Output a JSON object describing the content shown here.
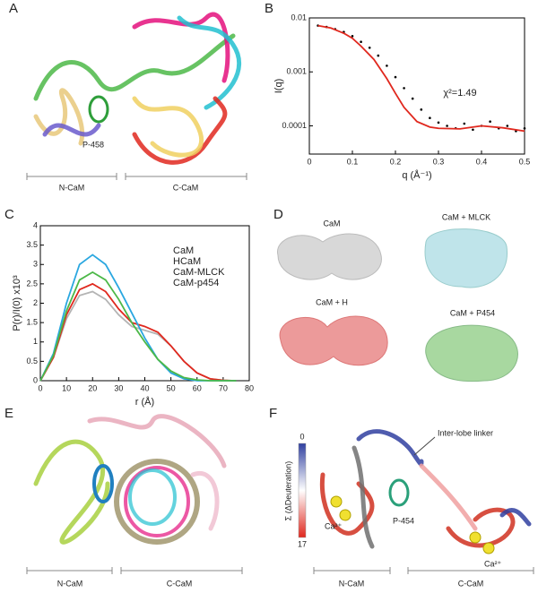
{
  "panels": {
    "A": {
      "label": "A",
      "peptide": "P-458",
      "n_lobe": "N-CaM",
      "c_lobe": "C-CaM"
    },
    "B": {
      "label": "B"
    },
    "C": {
      "label": "C"
    },
    "D": {
      "label": "D",
      "models": [
        "CaM",
        "CaM + MLCK",
        "CaM + H",
        "CaM + P454"
      ]
    },
    "E": {
      "label": "E",
      "n_lobe": "N-CaM",
      "c_lobe": "C-CaM"
    },
    "F": {
      "label": "F",
      "linker": "Inter-lobe linker",
      "scale_title": "Σ (ΔDeuteration)",
      "scale_min": "0",
      "scale_max": "17",
      "calcium": [
        "Ca²⁺",
        "Ca²⁺"
      ],
      "peptide": "P-454",
      "n_lobe": "N-CaM",
      "c_lobe": "C-CaM"
    }
  },
  "chart_data": [
    {
      "type": "scatter",
      "x_label": "q (Å⁻¹)",
      "y_label": "I(q)",
      "annotation": "χ²=1.49",
      "xlim": [
        0,
        0.5
      ],
      "xticks": [
        0,
        0.1,
        0.2,
        0.3,
        0.4,
        0.5
      ],
      "ylim": [
        3e-05,
        0.01
      ],
      "yticks": [
        0.0001,
        0.001,
        0.01
      ],
      "log_y": true,
      "series": [
        {
          "style": "points",
          "color": "#000000",
          "x": [
            0.02,
            0.04,
            0.06,
            0.08,
            0.1,
            0.12,
            0.14,
            0.16,
            0.18,
            0.2,
            0.22,
            0.24,
            0.26,
            0.28,
            0.3,
            0.32,
            0.34,
            0.36,
            0.38,
            0.4,
            0.42,
            0.44,
            0.46,
            0.48,
            0.5
          ],
          "values": [
            0.0072,
            0.0068,
            0.0062,
            0.0055,
            0.0046,
            0.0036,
            0.0028,
            0.002,
            0.0013,
            0.0008,
            0.0005,
            0.00032,
            0.0002,
            0.00014,
            0.000115,
            0.0001,
            9e-05,
            0.00011,
            8.5e-05,
            0.0001,
            0.00012,
            9e-05,
            0.0001,
            8e-05,
            9e-05
          ]
        },
        {
          "style": "line",
          "color": "#e0281e",
          "x": [
            0.02,
            0.05,
            0.08,
            0.1,
            0.12,
            0.15,
            0.18,
            0.2,
            0.22,
            0.25,
            0.28,
            0.3,
            0.35,
            0.4,
            0.45,
            0.5
          ],
          "values": [
            0.0072,
            0.0065,
            0.0052,
            0.0042,
            0.003,
            0.0017,
            0.00075,
            0.0004,
            0.00022,
            0.00012,
            9.5e-05,
            9e-05,
            8.8e-05,
            0.0001,
            9.2e-05,
            8e-05
          ]
        }
      ]
    },
    {
      "type": "line",
      "x_label": "r (Å)",
      "y_label": "P(r)/I(0)  x10³",
      "xlim": [
        0,
        80
      ],
      "xticks": [
        0,
        10,
        20,
        30,
        40,
        50,
        60,
        70,
        80
      ],
      "ylim": [
        0,
        4
      ],
      "yticks": [
        0,
        0.5,
        1,
        1.5,
        2,
        2.5,
        3,
        3.5,
        4
      ],
      "x": [
        0,
        5,
        10,
        15,
        20,
        25,
        30,
        35,
        40,
        45,
        50,
        55,
        60,
        65,
        70,
        75
      ],
      "series": [
        {
          "name": "CaM",
          "color": "#b4b4b4",
          "style": "line",
          "values": [
            0,
            0.6,
            1.6,
            2.2,
            2.3,
            2.1,
            1.7,
            1.4,
            1.3,
            1.2,
            0.9,
            0.5,
            0.2,
            0.05,
            0.01,
            0
          ]
        },
        {
          "name": "HCaM",
          "color": "#e0281e",
          "style": "line",
          "values": [
            0,
            0.6,
            1.7,
            2.35,
            2.5,
            2.3,
            1.85,
            1.5,
            1.4,
            1.25,
            0.9,
            0.5,
            0.2,
            0.05,
            0.01,
            0
          ]
        },
        {
          "name": "CaM-MLCK",
          "color": "#2aa7e0",
          "style": "line",
          "values": [
            0,
            0.7,
            2.0,
            3.0,
            3.25,
            3.0,
            2.4,
            1.75,
            1.1,
            0.55,
            0.2,
            0.05,
            0,
            0,
            0,
            0
          ]
        },
        {
          "name": "CaM-p454",
          "color": "#4cb848",
          "style": "line",
          "values": [
            0,
            0.65,
            1.8,
            2.6,
            2.8,
            2.6,
            2.1,
            1.5,
            1.0,
            0.55,
            0.25,
            0.08,
            0.02,
            0,
            0,
            0
          ]
        }
      ]
    }
  ]
}
